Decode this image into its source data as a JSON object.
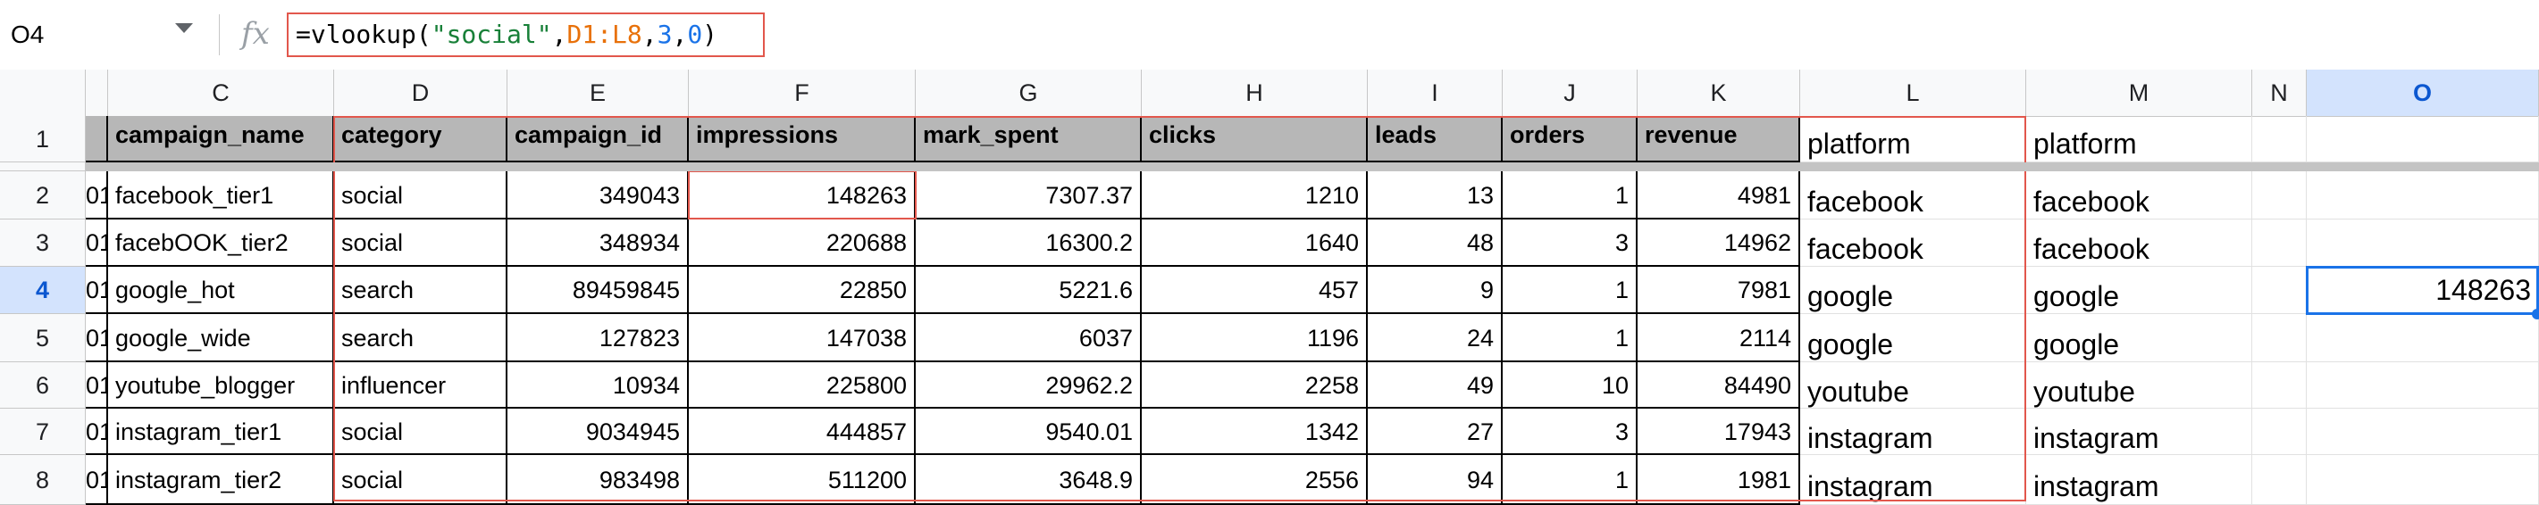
{
  "formula_bar": {
    "name_box": "O4",
    "fx_label": "fx",
    "formula": {
      "fn": "=vlookup(",
      "arg1": "\"social\"",
      "sep1": ",",
      "arg2": "D1:L8",
      "sep2": ",",
      "arg3": "3",
      "sep3": ",",
      "arg4": "0",
      "close": ")"
    }
  },
  "columns": [
    "C",
    "D",
    "E",
    "F",
    "G",
    "H",
    "I",
    "J",
    "K",
    "L",
    "M",
    "N",
    "O"
  ],
  "rows": [
    "1",
    "2",
    "3",
    "4",
    "5",
    "6",
    "7",
    "8"
  ],
  "selected_cell": {
    "column": "O",
    "row": "4",
    "value": "148263"
  },
  "colors": {
    "selection": "#1a73e8",
    "highlight": "#e2574c",
    "header_fill": "#b7b7b7"
  },
  "table": {
    "headers": [
      "campaign_name",
      "category",
      "campaign_id",
      "impressions",
      "mark_spent",
      "clicks",
      "leads",
      "orders",
      "revenue",
      "platform",
      "platform"
    ],
    "b_col_fragments": [
      "01",
      "01",
      "01",
      "01",
      "01",
      "01",
      "01"
    ],
    "rows": [
      [
        "facebook_tier1",
        "social",
        "349043",
        "148263",
        "7307.37",
        "1210",
        "13",
        "1",
        "4981",
        "facebook",
        "facebook"
      ],
      [
        "facebOOK_tier2",
        "social",
        "348934",
        "220688",
        "16300.2",
        "1640",
        "48",
        "3",
        "14962",
        "facebook",
        "facebook"
      ],
      [
        "google_hot",
        "search",
        "89459845",
        "22850",
        "5221.6",
        "457",
        "9",
        "1",
        "7981",
        "google",
        "google"
      ],
      [
        "google_wide",
        "search",
        "127823",
        "147038",
        "6037",
        "1196",
        "24",
        "1",
        "2114",
        "google",
        "google"
      ],
      [
        "youtube_blogger",
        "influencer",
        "10934",
        "225800",
        "29962.2",
        "2258",
        "49",
        "10",
        "84490",
        "youtube",
        "youtube"
      ],
      [
        "instagram_tier1",
        "social",
        "9034945",
        "444857",
        "9540.01",
        "1342",
        "27",
        "3",
        "17943",
        "instagram",
        "instagram"
      ],
      [
        "instagram_tier2",
        "social",
        "983498",
        "511200",
        "3648.9",
        "2556",
        "94",
        "1",
        "1981",
        "instagram",
        "instagram"
      ]
    ]
  }
}
